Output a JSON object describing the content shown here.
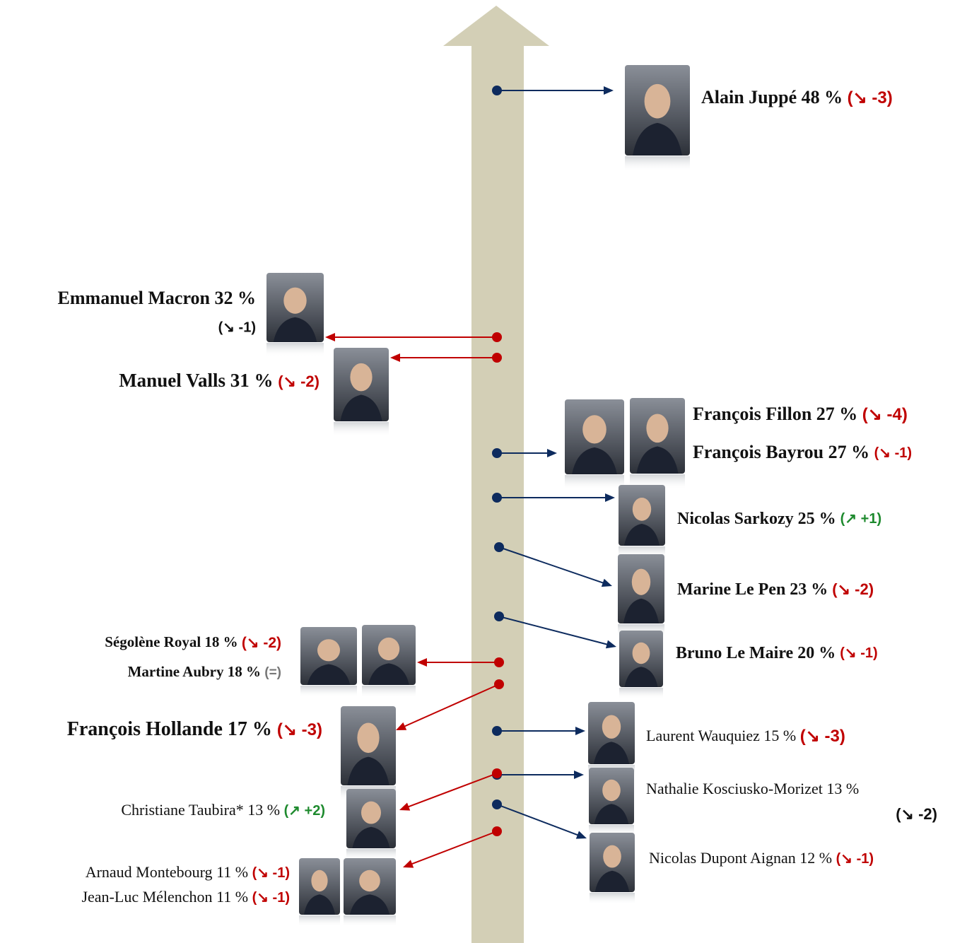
{
  "entries": [
    {
      "arrow_color": "#0d2b5e",
      "people": [
        {
          "name": "Alain Juppé",
          "score": "48 %",
          "change": "(↘ -3)",
          "change_color": "#c00000"
        }
      ]
    },
    {
      "arrow_color": "#c00000",
      "people": [
        {
          "name": "Emmanuel Macron",
          "score": "32 %",
          "change": "(↘ -1)",
          "change_color": "#c00000"
        }
      ]
    },
    {
      "arrow_color": "#c00000",
      "people": [
        {
          "name": "Manuel Valls",
          "score": "31 %",
          "change": "(↘ -2)",
          "change_color": "#c00000"
        }
      ]
    },
    {
      "arrow_color": "#0d2b5e",
      "people": [
        {
          "name": "François Fillon",
          "score": "27 %",
          "change": "(↘ -4)",
          "change_color": "#c00000"
        },
        {
          "name": "François Bayrou",
          "score": "27 %",
          "change": "(↘ -1)",
          "change_color": "#c00000"
        }
      ]
    },
    {
      "arrow_color": "#0d2b5e",
      "people": [
        {
          "name": "Nicolas Sarkozy",
          "score": "25 %",
          "change": "(↗ +1)",
          "change_color": "#1e8a2e"
        }
      ]
    },
    {
      "arrow_color": "#0d2b5e",
      "people": [
        {
          "name": "Marine Le Pen",
          "score": "23 %",
          "change": "(↘ -2)",
          "change_color": "#c00000"
        }
      ]
    },
    {
      "arrow_color": "#0d2b5e",
      "people": [
        {
          "name": "Bruno Le Maire",
          "score": "20 %",
          "change": "(↘ -1)",
          "change_color": "#c00000"
        }
      ]
    },
    {
      "arrow_color": "#c00000",
      "people": [
        {
          "name": "Ségolène Royal",
          "score": "18 %",
          "change": "(↘ -2)",
          "change_color": "#c00000"
        },
        {
          "name": "Martine Aubry",
          "score": "18 %",
          "change": "(=)",
          "change_color": "#777777"
        }
      ]
    },
    {
      "arrow_color": "#c00000",
      "people": [
        {
          "name": "François Hollande",
          "score": "17 %",
          "change": "(↘ -3)",
          "change_color": "#c00000"
        }
      ]
    },
    {
      "arrow_color": "#0d2b5e",
      "people": [
        {
          "name": "Laurent Wauquiez",
          "score": "15 %",
          "change": "(↘ -3)",
          "change_color": "#c00000"
        }
      ]
    },
    {
      "arrow_color": "#0d2b5e",
      "people": [
        {
          "name": "Nathalie Kosciusko-Morizet",
          "score": "13 %",
          "change": "(↘ -2)",
          "change_color": "#c00000"
        }
      ]
    },
    {
      "arrow_color": "#c00000",
      "people": [
        {
          "name": "Christiane Taubira*",
          "score": "13 %",
          "change": "(↗ +2)",
          "change_color": "#1e8a2e"
        }
      ]
    },
    {
      "arrow_color": "#0d2b5e",
      "people": [
        {
          "name": "Nicolas Dupont Aignan",
          "score": "12 %",
          "change": "(↘ -1)",
          "change_color": "#c00000"
        }
      ]
    },
    {
      "arrow_color": "#c00000",
      "people": [
        {
          "name": "Arnaud Montebourg",
          "score": "11 %",
          "change": "(↘ -1)",
          "change_color": "#c00000"
        },
        {
          "name": "Jean-Luc Mélenchon",
          "score": "11 %",
          "change": "(↘ -1)",
          "change_color": "#c00000"
        }
      ]
    }
  ]
}
